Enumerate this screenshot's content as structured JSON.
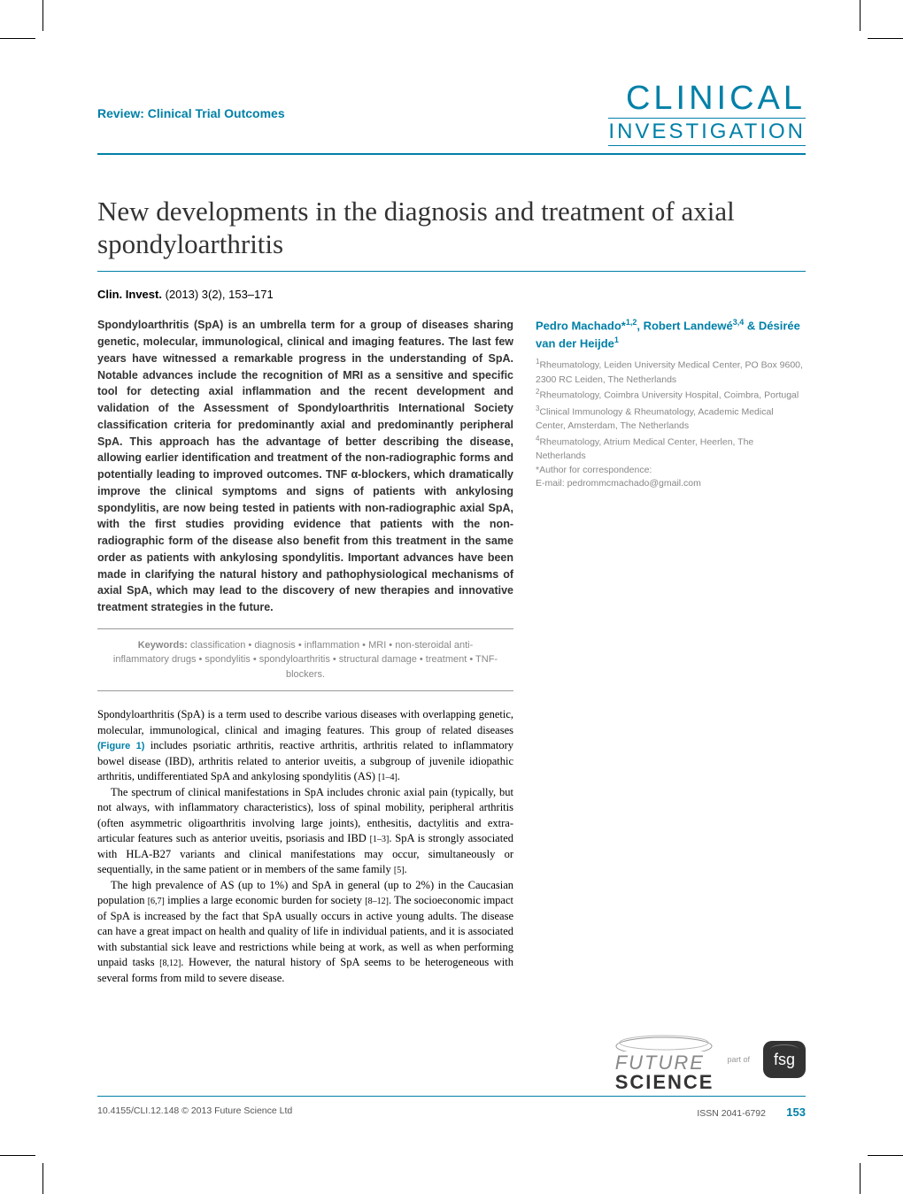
{
  "header": {
    "review_label": "Review: Clinical Trial Outcomes",
    "journal_line1": "CLINICAL",
    "journal_line2": "INVESTIGATION"
  },
  "article": {
    "title": "New developments in the diagnosis and treatment of axial spondyloarthritis",
    "citation_journal": "Clin. Invest.",
    "citation_details": " (2013) 3(2), 153–171",
    "abstract": "Spondyloarthritis (SpA) is an umbrella term for a group of diseases sharing genetic, molecular, immunological, clinical and imaging features. The last few years have witnessed a remarkable progress in the understanding of SpA. Notable advances include the recognition of MRI as a sensitive and specific tool for detecting axial inflammation and the recent development and validation of the Assessment of Spondyloarthritis International Society classification criteria for predominantly axial and predominantly peripheral SpA. This approach has the advantage of better describing the disease, allowing earlier identification and treatment of the non-radiographic forms and potentially leading to improved outcomes. TNF α-blockers, which dramatically improve the clinical symptoms and signs of patients with ankylosing spondylitis, are now being tested in patients with non-radiographic axial SpA, with the first studies providing evidence that patients with the non-radiographic form of the disease also benefit from this treatment in the same order as patients with ankylosing spondylitis. Important advances have been made in clarifying the natural history and pathophysiological mechanisms of axial SpA, which may lead to the discovery of new therapies and innovative treatment strategies in the future.",
    "keywords_label": "Keywords:",
    "keywords": " classification • diagnosis • inflammation • MRI • non-steroidal anti-inflammatory drugs • spondylitis • spondyloarthritis • structural damage • treatment • TNF-blockers.",
    "para1_a": "Spondyloarthritis (SpA) is a term used to describe various diseases with overlapping genetic, molecular, immunological, clinical and imaging features. This group of related diseases ",
    "para1_fig": "(Figure 1)",
    "para1_b": " includes psoriatic arthritis, reactive arthritis, arthritis related to inflammatory bowel disease (IBD), arthritis related to anterior uveitis, a subgroup of juvenile idiopathic arthritis, undifferentiated SpA and ankylosing spondylitis (AS) ",
    "para1_c1": "[1–4]",
    "para1_c": ".",
    "para2_a": "The spectrum of clinical manifestations in SpA includes chronic axial pain (typically, but not always, with inflammatory characteristics), loss of spinal mobility, peripheral arthritis (often asymmetric oligoarthritis involving large joints), enthesitis, dactylitis and extra-articular features such as anterior uveitis, psoriasis and IBD ",
    "para2_c1": "[1–3]",
    "para2_b": ". SpA is strongly associated with HLA-B27 variants and clinical manifestations may occur, simultaneously or sequentially, in the same patient or in members of the same family ",
    "para2_c2": "[5]",
    "para2_c": ".",
    "para3_a": "The high prevalence of AS (up to 1%) and SpA in general (up to 2%) in the Caucasian population ",
    "para3_c1": "[6,7]",
    "para3_b": " implies a large economic burden for society ",
    "para3_c2": "[8–12]",
    "para3_c": ". The socioeconomic impact of SpA is increased by the fact that SpA usually occurs in active young adults. The disease can have a great impact on health and quality of life in individual patients, and it is associated with substantial sick leave and restrictions while being at work, as well as when performing unpaid tasks ",
    "para3_c3": "[8,12]",
    "para3_d": ". However, the natural history of SpA seems to be heterogeneous with several forms from mild to severe disease."
  },
  "authors": {
    "line": "Pedro Machado*<sup>1,2</sup>, Robert Landewé<sup>3,4</sup> & Désirée van der Heijde<sup>1</sup>",
    "aff1": "<sup>1</sup>Rheumatology, Leiden University Medical Center, PO Box 9600, 2300 RC Leiden, The Netherlands",
    "aff2": "<sup>2</sup>Rheumatology, Coimbra University Hospital, Coimbra, Portugal",
    "aff3": "<sup>3</sup>Clinical Immunology & Rheumatology, Academic Medical Center, Amsterdam, The Netherlands",
    "aff4": "<sup>4</sup>Rheumatology, Atrium Medical Center, Heerlen, The Netherlands",
    "corr": "*Author for correspondence:",
    "email": "E-mail: pedrommcmachado@gmail.com"
  },
  "publisher": {
    "word1": "FUTURE",
    "word2": "SCIENCE",
    "partof": "part of",
    "fsg": "fsg"
  },
  "footer": {
    "doi": "10.4155/CLI.12.148 © 2013 Future Science Ltd",
    "issn": "ISSN 2041-6792",
    "page": "153"
  },
  "colors": {
    "accent": "#0080a8",
    "text_gray": "#888888",
    "text_dark": "#333333"
  }
}
